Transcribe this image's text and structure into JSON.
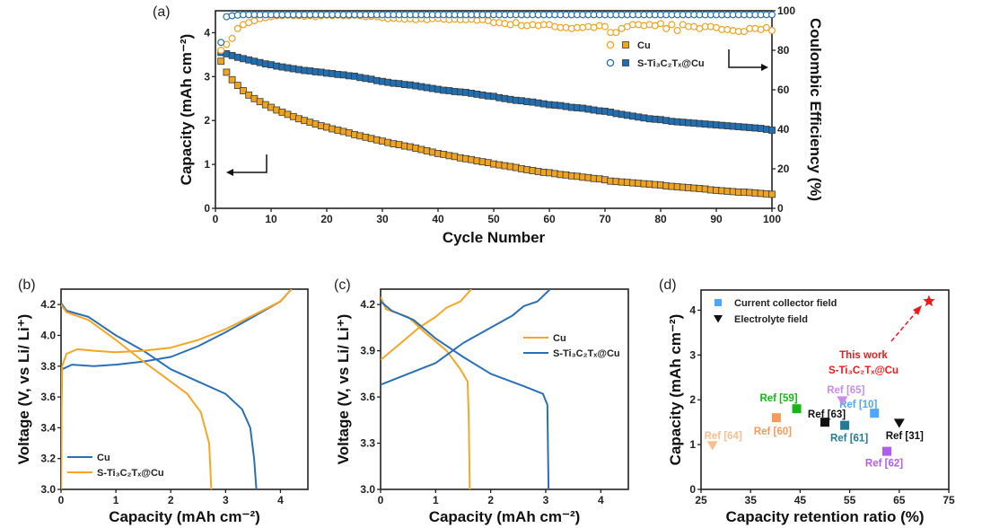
{
  "colors": {
    "orange": "#f0a31c",
    "blue": "#1f6fb4",
    "red": "#f01818",
    "frame": "#222222"
  },
  "chart_data": [
    {
      "panel": "(a)",
      "type": "scatter",
      "xlabel": "Cycle Number",
      "ylabel": "Capacity (mAh cm⁻²)",
      "y2label": "Coulombic Efficiency (%)",
      "xlim": [
        0,
        100
      ],
      "ylim": [
        0,
        4.5
      ],
      "y2lim": [
        0,
        100
      ],
      "xticks": [
        "0",
        "10",
        "20",
        "30",
        "40",
        "50",
        "60",
        "70",
        "80",
        "90",
        "100"
      ],
      "yticks": [
        "0",
        "1",
        "2",
        "3",
        "4"
      ],
      "y2ticks": [
        "0",
        "20",
        "40",
        "60",
        "80",
        "100"
      ],
      "legend": {
        "position": "top-right",
        "entries": [
          "Cu",
          "S-Ti₃C₂Tₓ@Cu"
        ]
      },
      "series": [
        {
          "name": "Cu capacity",
          "axis": "left",
          "marker": "square",
          "color": "#f0a31c",
          "values": [
            3.35,
            3.1,
            2.93,
            2.8,
            2.68,
            2.58,
            2.5,
            2.43,
            2.36,
            2.3,
            2.24,
            2.19,
            2.14,
            2.09,
            2.04,
            2.0,
            1.96,
            1.92,
            1.88,
            1.85,
            1.81,
            1.78,
            1.75,
            1.72,
            1.68,
            1.65,
            1.62,
            1.59,
            1.56,
            1.53,
            1.5,
            1.47,
            1.45,
            1.42,
            1.4,
            1.37,
            1.34,
            1.31,
            1.28,
            1.25,
            1.23,
            1.2,
            1.18,
            1.15,
            1.13,
            1.11,
            1.08,
            1.06,
            1.04,
            1.01,
            0.99,
            0.97,
            0.95,
            0.93,
            0.9,
            0.88,
            0.86,
            0.84,
            0.82,
            0.81,
            0.79,
            0.77,
            0.76,
            0.74,
            0.73,
            0.71,
            0.7,
            0.68,
            0.67,
            0.65,
            0.62,
            0.61,
            0.6,
            0.59,
            0.58,
            0.57,
            0.56,
            0.55,
            0.54,
            0.53,
            0.51,
            0.5,
            0.49,
            0.48,
            0.47,
            0.46,
            0.45,
            0.44,
            0.42,
            0.41,
            0.4,
            0.39,
            0.38,
            0.37,
            0.37,
            0.36,
            0.35,
            0.34,
            0.33,
            0.32
          ]
        },
        {
          "name": "S-Ti₃C₂Tₓ@Cu capacity",
          "axis": "left",
          "marker": "square",
          "color": "#1f6fb4",
          "values": [
            3.55,
            3.52,
            3.48,
            3.44,
            3.41,
            3.38,
            3.35,
            3.32,
            3.29,
            3.27,
            3.24,
            3.22,
            3.2,
            3.18,
            3.16,
            3.14,
            3.13,
            3.11,
            3.1,
            3.08,
            3.07,
            3.05,
            3.04,
            3.02,
            3.01,
            2.98,
            2.96,
            2.94,
            2.91,
            2.89,
            2.87,
            2.85,
            2.84,
            2.82,
            2.81,
            2.79,
            2.77,
            2.75,
            2.73,
            2.71,
            2.69,
            2.68,
            2.66,
            2.65,
            2.64,
            2.62,
            2.6,
            2.58,
            2.56,
            2.55,
            2.52,
            2.5,
            2.48,
            2.46,
            2.45,
            2.43,
            2.42,
            2.4,
            2.38,
            2.36,
            2.35,
            2.34,
            2.32,
            2.3,
            2.29,
            2.28,
            2.26,
            2.24,
            2.22,
            2.21,
            2.19,
            2.16,
            2.14,
            2.12,
            2.1,
            2.08,
            2.06,
            2.04,
            2.03,
            2.02,
            2.0,
            1.98,
            1.97,
            1.96,
            1.95,
            1.94,
            1.93,
            1.92,
            1.91,
            1.9,
            1.89,
            1.88,
            1.87,
            1.86,
            1.85,
            1.84,
            1.83,
            1.82,
            1.8,
            1.78
          ]
        },
        {
          "name": "Cu CE",
          "axis": "right",
          "marker": "circle-open",
          "color": "#f0a31c",
          "values": [
            80,
            83,
            86,
            91,
            93,
            94,
            95,
            96,
            96.5,
            97,
            97.5,
            97.5,
            97.8,
            97.5,
            97.5,
            97.2,
            97.5,
            97,
            97.5,
            97.8,
            97.5,
            97.8,
            97.5,
            97.5,
            97.8,
            97.5,
            97,
            97.2,
            97,
            96.5,
            96,
            96.2,
            96,
            95.8,
            96,
            95.5,
            96,
            95.5,
            96,
            96.2,
            95.8,
            95.5,
            95.8,
            95.5,
            95.5,
            95.8,
            95.2,
            95.5,
            95,
            94,
            94,
            93.5,
            93,
            94,
            92.5,
            92.5,
            93,
            92.5,
            93,
            93,
            92,
            91.5,
            91.5,
            91,
            91.5,
            91.5,
            92,
            91.5,
            92.5,
            92,
            89,
            89,
            91,
            92,
            93,
            93,
            92.5,
            93,
            92.5,
            93.5,
            91,
            93,
            90,
            93,
            92,
            92,
            91,
            92,
            92,
            91.5,
            90.5,
            90.5,
            90,
            89.5,
            89.5,
            91,
            91,
            90.5,
            91.5,
            90
          ]
        },
        {
          "name": "S-Ti₃C₂Tₓ@Cu CE",
          "axis": "right",
          "marker": "circle-open",
          "color": "#1f6fb4",
          "values": [
            84,
            97,
            97.5,
            97.8,
            98,
            98,
            98,
            98,
            98,
            98,
            98,
            98,
            98,
            98,
            98,
            98,
            98,
            98,
            98,
            98,
            98,
            98,
            98,
            98,
            98,
            98,
            98,
            98,
            98,
            98,
            98,
            98,
            98,
            98,
            98,
            98,
            98,
            98,
            98,
            98,
            98,
            98,
            98,
            98,
            98,
            98,
            98,
            98,
            98,
            98,
            98,
            98,
            98,
            98,
            98,
            98,
            98,
            98,
            98,
            98,
            98,
            98,
            98,
            98,
            98,
            98,
            98,
            98,
            98,
            98,
            98,
            98,
            98,
            98,
            98,
            98,
            98,
            98,
            98,
            98,
            98,
            98,
            98,
            98,
            98,
            98,
            98,
            98,
            98,
            98,
            98,
            98,
            98,
            98,
            98,
            98,
            98,
            98,
            98,
            98
          ]
        }
      ]
    },
    {
      "panel": "(b)",
      "type": "line",
      "xlabel": "Capacity (mAh cm⁻²)",
      "ylabel": "Voltage (V, vs Li/ Li⁺)",
      "xlim": [
        0,
        4.5
      ],
      "ylim": [
        3.0,
        4.3
      ],
      "xticks": [
        "0",
        "1",
        "2",
        "3",
        "4"
      ],
      "yticks": [
        "3.0",
        "3.2",
        "3.4",
        "3.6",
        "3.8",
        "4.0",
        "4.2"
      ],
      "legend": {
        "position": "bottom-left",
        "entries": [
          "Cu",
          "S-Ti₃C₂Tₓ@Cu"
        ]
      },
      "series": [
        {
          "name": "Cu",
          "color": "#2a70b8",
          "charge": [
            [
              0,
              3.0
            ],
            [
              0.01,
              3.6
            ],
            [
              0.02,
              3.78
            ],
            [
              0.2,
              3.81
            ],
            [
              0.6,
              3.8
            ],
            [
              1.0,
              3.81
            ],
            [
              1.5,
              3.83
            ],
            [
              2.0,
              3.86
            ],
            [
              2.5,
              3.93
            ],
            [
              3.0,
              4.02
            ],
            [
              3.5,
              4.12
            ],
            [
              4.0,
              4.22
            ],
            [
              4.2,
              4.3
            ]
          ],
          "discharge": [
            [
              0,
              4.21
            ],
            [
              0.1,
              4.16
            ],
            [
              0.5,
              4.12
            ],
            [
              1.0,
              4.0
            ],
            [
              1.5,
              3.9
            ],
            [
              2.0,
              3.78
            ],
            [
              2.5,
              3.7
            ],
            [
              3.0,
              3.62
            ],
            [
              3.3,
              3.52
            ],
            [
              3.45,
              3.4
            ],
            [
              3.52,
              3.2
            ],
            [
              3.56,
              3.0
            ]
          ]
        },
        {
          "name": "S-Ti₃C₂Tₓ@Cu",
          "color": "#f5a623",
          "charge": [
            [
              0,
              3.0
            ],
            [
              0.01,
              3.6
            ],
            [
              0.02,
              3.8
            ],
            [
              0.1,
              3.88
            ],
            [
              0.3,
              3.91
            ],
            [
              0.6,
              3.9
            ],
            [
              1.0,
              3.89
            ],
            [
              1.5,
              3.9
            ],
            [
              2.0,
              3.92
            ],
            [
              2.5,
              3.97
            ],
            [
              3.0,
              4.04
            ],
            [
              3.5,
              4.13
            ],
            [
              4.0,
              4.22
            ],
            [
              4.2,
              4.3
            ]
          ],
          "discharge": [
            [
              0,
              4.2
            ],
            [
              0.1,
              4.15
            ],
            [
              0.5,
              4.1
            ],
            [
              1.0,
              3.97
            ],
            [
              1.5,
              3.83
            ],
            [
              2.0,
              3.7
            ],
            [
              2.3,
              3.62
            ],
            [
              2.55,
              3.5
            ],
            [
              2.7,
              3.3
            ],
            [
              2.74,
              3.0
            ]
          ]
        }
      ]
    },
    {
      "panel": "(c)",
      "type": "line",
      "xlabel": "Capacity (mAh cm⁻²)",
      "ylabel": "Voltage (V, vs Li/ Li⁺)",
      "xlim": [
        0,
        4.5
      ],
      "ylim": [
        3.0,
        4.3
      ],
      "xticks": [
        "0",
        "1",
        "2",
        "3",
        "4"
      ],
      "yticks": [
        "3.0",
        "3.3",
        "3.6",
        "3.9",
        "4.2"
      ],
      "legend": {
        "position": "top-right",
        "entries": [
          "Cu",
          "S-Ti₃C₂Tₓ@Cu"
        ]
      },
      "series": [
        {
          "name": "Cu",
          "color": "#f5a623",
          "charge": [
            [
              0,
              3.84
            ],
            [
              0.3,
              3.93
            ],
            [
              0.7,
              4.05
            ],
            [
              1.0,
              4.12
            ],
            [
              1.2,
              4.18
            ],
            [
              1.45,
              4.22
            ],
            [
              1.65,
              4.3
            ]
          ],
          "discharge": [
            [
              0,
              4.25
            ],
            [
              0.1,
              4.17
            ],
            [
              0.5,
              4.12
            ],
            [
              0.8,
              4.02
            ],
            [
              1.2,
              3.9
            ],
            [
              1.45,
              3.78
            ],
            [
              1.58,
              3.7
            ],
            [
              1.6,
              3.5
            ],
            [
              1.62,
              3.0
            ]
          ]
        },
        {
          "name": "S-Ti₃C₂Tₓ@Cu",
          "color": "#2a70b8",
          "charge": [
            [
              0,
              3.68
            ],
            [
              0.5,
              3.75
            ],
            [
              1.0,
              3.82
            ],
            [
              1.5,
              3.95
            ],
            [
              2.0,
              4.05
            ],
            [
              2.4,
              4.13
            ],
            [
              2.6,
              4.19
            ],
            [
              2.85,
              4.22
            ],
            [
              3.08,
              4.3
            ]
          ],
          "discharge": [
            [
              0,
              4.22
            ],
            [
              0.2,
              4.16
            ],
            [
              0.6,
              4.1
            ],
            [
              1.0,
              3.98
            ],
            [
              1.5,
              3.86
            ],
            [
              2.0,
              3.75
            ],
            [
              2.6,
              3.67
            ],
            [
              2.95,
              3.62
            ],
            [
              3.03,
              3.55
            ],
            [
              3.05,
              3.0
            ]
          ]
        }
      ]
    },
    {
      "panel": "(d)",
      "type": "scatter",
      "xlabel": "Capacity retention ratio (%)",
      "ylabel": "Capacity (mAh cm⁻²)",
      "xlim": [
        25,
        75
      ],
      "ylim": [
        0,
        4.45
      ],
      "xticks": [
        "25",
        "35",
        "45",
        "55",
        "65",
        "75"
      ],
      "yticks": [
        "0",
        "1",
        "2",
        "3",
        "4"
      ],
      "legend": {
        "position": "top-left",
        "entries": [
          {
            "label": "Current collector field",
            "marker": "square",
            "color": "#4da6ff"
          },
          {
            "label": "Electrolyte field",
            "marker": "triangle-down",
            "color": "#111111"
          }
        ]
      },
      "annotation": {
        "lines": [
          "This work",
          "S-Ti₃C₂Tₓ@Cu"
        ],
        "color": "#f01818"
      },
      "points": [
        {
          "label": "Ref [10]",
          "x": 60,
          "y": 1.7,
          "marker": "square",
          "color": "#4da6ff"
        },
        {
          "label": "Ref [59]",
          "x": 44.3,
          "y": 1.8,
          "marker": "square",
          "color": "#18b418"
        },
        {
          "label": "Ref [60]",
          "x": 40.2,
          "y": 1.6,
          "marker": "square",
          "color": "#f59a5a"
        },
        {
          "label": "Ref [61]",
          "x": 54,
          "y": 1.43,
          "marker": "square",
          "color": "#237a92"
        },
        {
          "label": "Ref [62]",
          "x": 62.5,
          "y": 0.85,
          "marker": "square",
          "color": "#b05cf0"
        },
        {
          "label": "Ref [63]",
          "x": 50,
          "y": 1.5,
          "marker": "square",
          "color": "#111111"
        },
        {
          "label": "Ref [64]",
          "x": 27.3,
          "y": 0.98,
          "marker": "triangle-down",
          "color": "#fbbf8c"
        },
        {
          "label": "Ref [65]",
          "x": 53.5,
          "y": 1.98,
          "marker": "triangle-down",
          "color": "#c88cf0"
        },
        {
          "label": "Ref [31]",
          "x": 65,
          "y": 1.48,
          "marker": "triangle-down",
          "color": "#111111"
        },
        {
          "label": "This work",
          "x": 71,
          "y": 4.2,
          "marker": "star",
          "color": "#f01818"
        }
      ]
    }
  ]
}
